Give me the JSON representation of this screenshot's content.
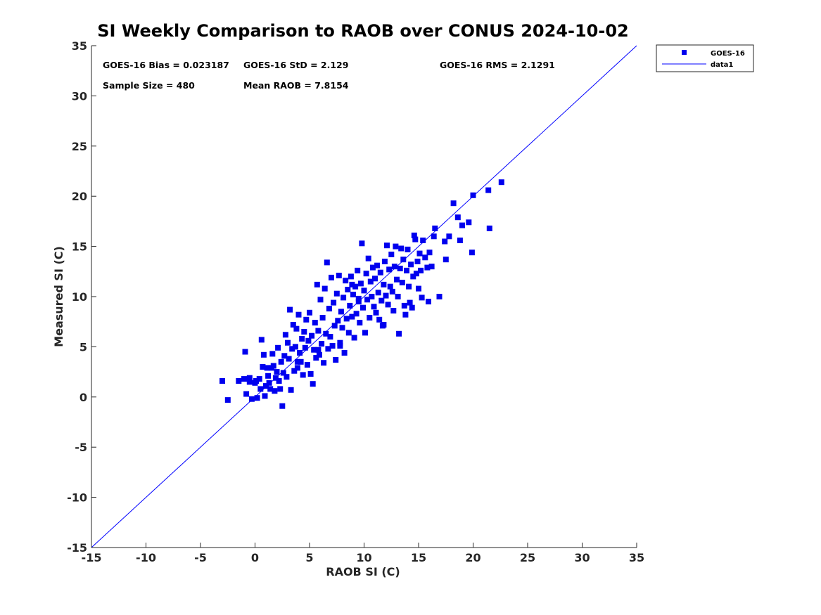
{
  "chart_data": {
    "type": "scatter",
    "title": "SI Weekly Comparison to RAOB over CONUS 2024-10-02",
    "xlabel": "RAOB SI (C)",
    "ylabel": "Measured SI (C)",
    "xlim": [
      -15,
      35
    ],
    "ylim": [
      -15,
      35
    ],
    "xticks": [
      "-15",
      "-10",
      "-5",
      "0",
      "5",
      "10",
      "15",
      "20",
      "25",
      "30",
      "35"
    ],
    "yticks": [
      "-15",
      "-10",
      "-5",
      "0",
      "5",
      "10",
      "15",
      "20",
      "25",
      "30",
      "35"
    ],
    "grid": false,
    "legend_position": "outside top-right",
    "colors": {
      "series": "#0000ee",
      "line": "#0000ff",
      "axes": "#262626"
    },
    "stats": {
      "bias": "GOES-16 Bias = 0.023187",
      "std": "GOES-16 StD = 2.129",
      "rms": "GOES-16 RMS = 2.1291",
      "sample": "Sample Size = 480",
      "mean": "Mean RAOB = 7.8154"
    },
    "series": [
      {
        "name": "GOES-16",
        "marker": "square",
        "points": [
          [
            -3.0,
            1.6
          ],
          [
            -2.5,
            -0.3
          ],
          [
            -1.5,
            1.6
          ],
          [
            -1.0,
            1.8
          ],
          [
            -0.9,
            4.5
          ],
          [
            -0.8,
            0.3
          ],
          [
            -0.5,
            1.5
          ],
          [
            -0.5,
            1.9
          ],
          [
            -0.3,
            -0.2
          ],
          [
            0.0,
            1.4
          ],
          [
            0.1,
            1.6
          ],
          [
            0.2,
            -0.1
          ],
          [
            0.4,
            1.8
          ],
          [
            0.5,
            0.8
          ],
          [
            0.6,
            5.7
          ],
          [
            0.7,
            3.0
          ],
          [
            0.8,
            4.2
          ],
          [
            0.9,
            0.1
          ],
          [
            1.0,
            1.1
          ],
          [
            1.1,
            2.9
          ],
          [
            1.2,
            2.1
          ],
          [
            1.3,
            1.4
          ],
          [
            1.4,
            0.8
          ],
          [
            1.5,
            2.9
          ],
          [
            1.6,
            4.3
          ],
          [
            1.7,
            3.1
          ],
          [
            1.8,
            0.6
          ],
          [
            1.9,
            1.9
          ],
          [
            2.0,
            2.5
          ],
          [
            2.1,
            4.9
          ],
          [
            2.2,
            1.6
          ],
          [
            2.3,
            0.8
          ],
          [
            2.4,
            3.5
          ],
          [
            2.5,
            -0.9
          ],
          [
            2.6,
            2.4
          ],
          [
            2.7,
            4.1
          ],
          [
            2.8,
            6.2
          ],
          [
            2.9,
            2.0
          ],
          [
            3.0,
            5.4
          ],
          [
            3.1,
            3.8
          ],
          [
            3.2,
            8.7
          ],
          [
            3.3,
            0.7
          ],
          [
            3.4,
            4.8
          ],
          [
            3.5,
            7.2
          ],
          [
            3.6,
            2.6
          ],
          [
            3.7,
            5.0
          ],
          [
            3.8,
            6.8
          ],
          [
            3.9,
            2.9
          ],
          [
            4.0,
            8.2
          ],
          [
            4.1,
            4.4
          ],
          [
            4.2,
            3.5
          ],
          [
            4.3,
            5.8
          ],
          [
            4.4,
            2.2
          ],
          [
            4.5,
            6.5
          ],
          [
            4.6,
            4.9
          ],
          [
            4.7,
            7.7
          ],
          [
            4.8,
            3.2
          ],
          [
            4.9,
            5.6
          ],
          [
            5.0,
            8.4
          ],
          [
            5.1,
            2.3
          ],
          [
            5.2,
            6.1
          ],
          [
            5.3,
            1.3
          ],
          [
            5.4,
            4.7
          ],
          [
            5.5,
            7.4
          ],
          [
            5.6,
            3.9
          ],
          [
            5.7,
            11.2
          ],
          [
            5.8,
            6.6
          ],
          [
            5.9,
            4.2
          ],
          [
            6.0,
            9.7
          ],
          [
            6.1,
            5.3
          ],
          [
            6.2,
            7.9
          ],
          [
            6.3,
            3.4
          ],
          [
            6.4,
            10.8
          ],
          [
            6.5,
            6.3
          ],
          [
            6.6,
            13.4
          ],
          [
            6.7,
            4.8
          ],
          [
            6.8,
            8.8
          ],
          [
            6.9,
            6.0
          ],
          [
            7.0,
            11.9
          ],
          [
            7.1,
            5.1
          ],
          [
            7.2,
            9.4
          ],
          [
            7.3,
            7.1
          ],
          [
            7.4,
            3.7
          ],
          [
            7.5,
            10.3
          ],
          [
            7.6,
            7.6
          ],
          [
            7.7,
            12.1
          ],
          [
            7.8,
            5.4
          ],
          [
            7.9,
            8.5
          ],
          [
            8.0,
            6.9
          ],
          [
            8.1,
            9.9
          ],
          [
            8.2,
            4.4
          ],
          [
            8.3,
            11.6
          ],
          [
            8.4,
            7.8
          ],
          [
            8.5,
            10.7
          ],
          [
            8.6,
            6.4
          ],
          [
            8.7,
            9.1
          ],
          [
            8.8,
            12.0
          ],
          [
            8.9,
            8.0
          ],
          [
            9.0,
            10.2
          ],
          [
            9.1,
            5.9
          ],
          [
            9.2,
            11.0
          ],
          [
            9.3,
            8.3
          ],
          [
            9.4,
            12.6
          ],
          [
            9.5,
            9.5
          ],
          [
            9.6,
            7.4
          ],
          [
            9.7,
            11.3
          ],
          [
            9.8,
            15.3
          ],
          [
            9.9,
            8.9
          ],
          [
            10.0,
            10.6
          ],
          [
            10.1,
            6.4
          ],
          [
            10.2,
            12.3
          ],
          [
            10.3,
            9.7
          ],
          [
            10.4,
            13.8
          ],
          [
            10.5,
            7.9
          ],
          [
            10.6,
            11.5
          ],
          [
            10.7,
            10.0
          ],
          [
            10.8,
            12.9
          ],
          [
            10.9,
            9.0
          ],
          [
            11.0,
            11.8
          ],
          [
            11.1,
            8.4
          ],
          [
            11.2,
            13.1
          ],
          [
            11.3,
            10.4
          ],
          [
            11.4,
            7.7
          ],
          [
            11.5,
            12.4
          ],
          [
            11.6,
            9.6
          ],
          [
            11.7,
            7.1
          ],
          [
            11.8,
            11.2
          ],
          [
            11.9,
            13.5
          ],
          [
            12.0,
            10.1
          ],
          [
            12.1,
            15.1
          ],
          [
            12.2,
            9.2
          ],
          [
            12.3,
            12.7
          ],
          [
            12.4,
            11.0
          ],
          [
            12.5,
            14.2
          ],
          [
            12.6,
            10.5
          ],
          [
            12.7,
            8.6
          ],
          [
            12.8,
            13.0
          ],
          [
            12.9,
            15.0
          ],
          [
            13.0,
            11.7
          ],
          [
            13.1,
            10.0
          ],
          [
            13.2,
            6.3
          ],
          [
            13.3,
            12.8
          ],
          [
            13.4,
            14.8
          ],
          [
            13.5,
            11.4
          ],
          [
            13.6,
            13.7
          ],
          [
            13.7,
            9.1
          ],
          [
            13.8,
            8.2
          ],
          [
            13.9,
            12.6
          ],
          [
            14.0,
            14.7
          ],
          [
            14.1,
            11.0
          ],
          [
            14.2,
            9.4
          ],
          [
            14.3,
            13.2
          ],
          [
            14.4,
            8.9
          ],
          [
            14.5,
            12.0
          ],
          [
            14.6,
            16.1
          ],
          [
            14.7,
            15.7
          ],
          [
            14.8,
            12.3
          ],
          [
            14.9,
            13.5
          ],
          [
            15.0,
            10.8
          ],
          [
            15.1,
            14.3
          ],
          [
            15.2,
            12.6
          ],
          [
            15.3,
            9.9
          ],
          [
            15.4,
            15.6
          ],
          [
            15.6,
            13.9
          ],
          [
            15.8,
            12.9
          ],
          [
            15.9,
            9.5
          ],
          [
            16.0,
            14.4
          ],
          [
            16.2,
            13.0
          ],
          [
            16.4,
            16.0
          ],
          [
            16.5,
            16.8
          ],
          [
            16.9,
            10.0
          ],
          [
            17.4,
            15.5
          ],
          [
            17.5,
            13.7
          ],
          [
            17.8,
            16.0
          ],
          [
            18.2,
            19.3
          ],
          [
            18.6,
            17.9
          ],
          [
            18.8,
            15.6
          ],
          [
            19.0,
            17.1
          ],
          [
            19.6,
            17.4
          ],
          [
            19.9,
            14.4
          ],
          [
            20.0,
            20.1
          ],
          [
            21.4,
            20.6
          ],
          [
            21.5,
            16.8
          ],
          [
            22.6,
            21.4
          ],
          [
            11.8,
            7.2
          ],
          [
            7.8,
            5.1
          ],
          [
            5.8,
            4.7
          ],
          [
            3.9,
            3.5
          ],
          [
            9.5,
            9.8
          ],
          [
            8.9,
            11.2
          ]
        ]
      }
    ],
    "reference_line": {
      "name": "data1",
      "from": [
        -15,
        -15
      ],
      "to": [
        35,
        35
      ]
    }
  }
}
